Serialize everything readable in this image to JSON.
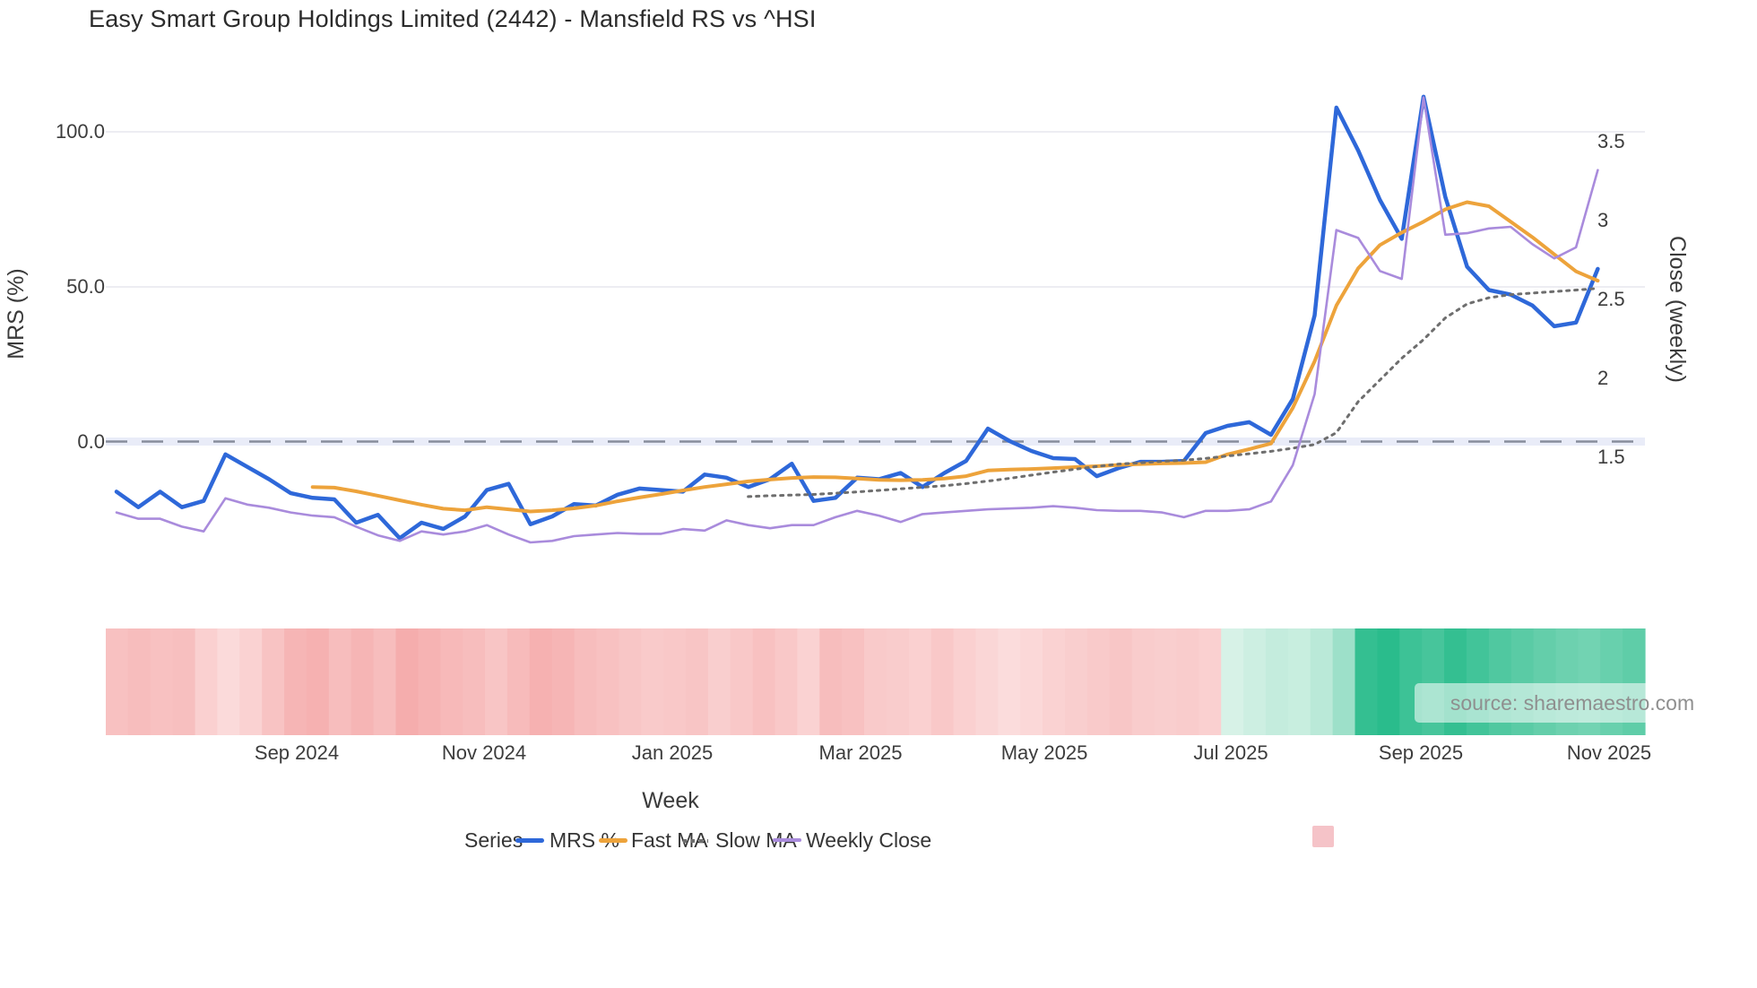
{
  "title": "Easy Smart Group Holdings Limited (2442) - Mansfield RS vs ^HSI",
  "source_note": "source: sharemaestro.com",
  "axes": {
    "x": {
      "title": "Week",
      "tick_labels": [
        "Sep 2024",
        "Nov 2024",
        "Jan 2025",
        "Mar 2025",
        "May 2025",
        "Jul 2025",
        "Sep 2025",
        "Nov 2025"
      ]
    },
    "y_left": {
      "title": "MRS (%)",
      "tick_labels": [
        "100.0",
        "50.0",
        "0.0"
      ],
      "tick_values": [
        100,
        50,
        0
      ]
    },
    "y_right": {
      "title": "Close (weekly)",
      "tick_labels": [
        "3.5",
        "3",
        "2.5",
        "2",
        "1.5"
      ],
      "tick_values": [
        3.5,
        3,
        2.5,
        2,
        1.5
      ]
    }
  },
  "legend": {
    "title": "Series",
    "items": [
      {
        "label": "MRS %",
        "color": "#2e68d9",
        "style": "solid"
      },
      {
        "label": "Fast MA",
        "color": "#eda33b",
        "style": "solid"
      },
      {
        "label": "Slow MA",
        "color": "#6e6e6e",
        "style": "dotted"
      },
      {
        "label": "Weekly Close",
        "color": "#a98bdc",
        "style": "solid"
      },
      {
        "label": "",
        "color": "#f5c3c8",
        "style": "box"
      }
    ]
  },
  "colors": {
    "mrs": "#2e68d9",
    "fast_ma": "#eda33b",
    "slow_ma": "#6e6e6e",
    "weekly_close": "#a98bdc",
    "zero_dash": "#878d9c",
    "zero_band": "#e9ecf8",
    "gridline": "#ededf2",
    "heat_red_strong": "#f39e9e",
    "heat_red_weak": "#fdebeb",
    "heat_green_weak": "#eaf8f1",
    "heat_green_strong": "#2abc8c",
    "title_text": "#2b2b2b",
    "axis_text": "#3c3c3c",
    "source_text": "#8f8f8f"
  },
  "chart_data": {
    "type": "line",
    "title": "Easy Smart Group Holdings Limited (2442) - Mansfield RS vs ^HSI",
    "xlabel": "Week",
    "ylabel_left": "MRS (%)",
    "ylabel_right": "Close (weekly)",
    "x_unit": "week",
    "x_span": "Jul 2024 - Nov 2025",
    "n_points": 69,
    "ylim_left": [
      -35,
      115
    ],
    "ylim_right": [
      0.93,
      3.8
    ],
    "grid": "horizontal only",
    "legend_position": "bottom",
    "zero_reference_line": {
      "axis": "left",
      "value": 0,
      "style": "dashed gray"
    },
    "series": [
      {
        "name": "MRS %",
        "axis": "left",
        "style": "solid",
        "color": "#2e68d9",
        "values": [
          -16,
          -21,
          -16,
          -21,
          -19,
          -4,
          -8,
          -12,
          -16.5,
          -18,
          -18.5,
          -26,
          -23.5,
          -31,
          -26,
          -28,
          -24,
          -15.5,
          -13.5,
          -26.5,
          -24,
          -20,
          -20.5,
          -17,
          -15,
          -15.5,
          -16,
          -10.5,
          -11.5,
          -14.5,
          -12,
          -7,
          -19,
          -18,
          -11.5,
          -12,
          -10,
          -14.5,
          -10,
          -6.1,
          4.3,
          0.3,
          -2.9,
          -5.2,
          -5.5,
          -11,
          -8.4,
          -6.4,
          -6.4,
          -6.1,
          2.9,
          5.2,
          6.4,
          2.3,
          13.9,
          40.8,
          107.8,
          94,
          78,
          65.5,
          111.3,
          79,
          56.5,
          49,
          47.5,
          44,
          37.3,
          38.5,
          55.8
        ]
      },
      {
        "name": "Fast MA",
        "axis": "left",
        "style": "solid",
        "color": "#eda33b",
        "values": [
          null,
          null,
          null,
          null,
          null,
          null,
          null,
          null,
          null,
          -14.5,
          -14.7,
          -15.9,
          -17.3,
          -18.8,
          -20.2,
          -21.5,
          -22,
          -21,
          -21.7,
          -22.4,
          -22,
          -21.4,
          -20.5,
          -19.1,
          -17.9,
          -16.8,
          -15.6,
          -14.5,
          -13.6,
          -12.7,
          -12.1,
          -11.6,
          -11.3,
          -11.4,
          -11.8,
          -12.2,
          -12.3,
          -12.2,
          -11.8,
          -11,
          -9.2,
          -8.9,
          -8.7,
          -8.4,
          -8.1,
          -7.8,
          -7.4,
          -7.1,
          -6.9,
          -6.8,
          -6.5,
          -4,
          -2.3,
          -0.5,
          11,
          26,
          44,
          56,
          63.5,
          67.5,
          71,
          75,
          77.3,
          76,
          71,
          66,
          60.5,
          55,
          52
        ]
      },
      {
        "name": "Slow MA",
        "axis": "left",
        "style": "dotted",
        "color": "#6e6e6e",
        "values": [
          null,
          null,
          null,
          null,
          null,
          null,
          null,
          null,
          null,
          null,
          null,
          null,
          null,
          null,
          null,
          null,
          null,
          null,
          null,
          null,
          null,
          null,
          null,
          null,
          null,
          null,
          null,
          null,
          null,
          -17.6,
          -17.3,
          -17.1,
          -16.9,
          -16.5,
          -16.1,
          -15.6,
          -15.1,
          -14.6,
          -14.1,
          -13.4,
          -12.6,
          -11.7,
          -10.7,
          -9.7,
          -8.8,
          -7.9,
          -7.1,
          -6.7,
          -6.2,
          -5.9,
          -5.3,
          -4.5,
          -3.8,
          -3,
          -2,
          -0.8,
          3,
          13,
          20,
          27,
          33,
          40,
          44.5,
          46.5,
          47.5,
          48,
          48.5,
          49,
          49.5
        ]
      },
      {
        "name": "Weekly Close",
        "axis": "right",
        "style": "solid",
        "color": "#a98bdc",
        "values": [
          1.15,
          1.11,
          1.11,
          1.06,
          1.03,
          1.24,
          1.2,
          1.18,
          1.15,
          1.13,
          1.12,
          1.06,
          1.005,
          0.97,
          1.03,
          1.01,
          1.03,
          1.07,
          1.01,
          0.96,
          0.97,
          1,
          1.01,
          1.02,
          1.015,
          1.015,
          1.045,
          1.035,
          1.1,
          1.07,
          1.05,
          1.07,
          1.07,
          1.12,
          1.16,
          1.13,
          1.09,
          1.14,
          1.15,
          1.16,
          1.17,
          1.175,
          1.18,
          1.19,
          1.18,
          1.165,
          1.16,
          1.16,
          1.15,
          1.12,
          1.16,
          1.16,
          1.17,
          1.22,
          1.45,
          1.9,
          2.94,
          2.89,
          2.68,
          2.63,
          3.78,
          2.91,
          2.92,
          2.95,
          2.96,
          2.85,
          2.76,
          2.83,
          3.32
        ]
      }
    ],
    "heatmap_strip": {
      "description": "weekly relative-strength heat band under plot, red = weak / green = strong",
      "scale_range": [
        -4,
        4
      ],
      "levels": [
        -2.2,
        -2.4,
        -2.2,
        -2.3,
        -1.4,
        -0.9,
        -1.3,
        -2.1,
        -2.8,
        -3,
        -2.4,
        -2.8,
        -2.4,
        -3.2,
        -2.9,
        -2.6,
        -2.4,
        -2,
        -2.5,
        -3,
        -2.8,
        -2.4,
        -2.2,
        -1.9,
        -1.7,
        -1.8,
        -2,
        -1.5,
        -1.8,
        -2.2,
        -1.8,
        -1.3,
        -2.4,
        -2.2,
        -1.7,
        -1.6,
        -1.4,
        -1.8,
        -1.4,
        -1.1,
        -0.8,
        -1,
        -1.3,
        -1.5,
        -1.7,
        -1.9,
        -1.6,
        -1.5,
        -1.6,
        -1.4,
        0.4,
        0.6,
        0.8,
        0.7,
        1,
        1.6,
        3.8,
        4,
        3.6,
        3.4,
        3.8,
        3.5,
        3.2,
        3,
        2.8,
        2.6,
        2.5,
        2.7,
        2.9
      ]
    }
  }
}
